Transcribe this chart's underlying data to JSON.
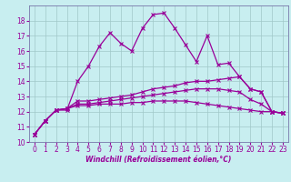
{
  "title": "",
  "xlabel": "Windchill (Refroidissement éolien,°C)",
  "background_color": "#c8eef0",
  "grid_color": "#a0c8c8",
  "line_color": "#990099",
  "spine_color": "#7777aa",
  "xlim": [
    -0.5,
    23.5
  ],
  "ylim": [
    10,
    19
  ],
  "yticks": [
    10,
    11,
    12,
    13,
    14,
    15,
    16,
    17,
    18
  ],
  "xticks": [
    0,
    1,
    2,
    3,
    4,
    5,
    6,
    7,
    8,
    9,
    10,
    11,
    12,
    13,
    14,
    15,
    16,
    17,
    18,
    19,
    20,
    21,
    22,
    23
  ],
  "series": [
    [
      10.5,
      11.4,
      12.1,
      12.1,
      14.0,
      15.0,
      16.3,
      17.2,
      16.5,
      16.0,
      17.5,
      18.4,
      18.5,
      17.5,
      16.4,
      15.3,
      17.0,
      15.1,
      15.2,
      14.3,
      13.5,
      13.3,
      12.0,
      11.9
    ],
    [
      10.5,
      11.4,
      12.1,
      12.2,
      12.7,
      12.7,
      12.8,
      12.9,
      13.0,
      13.1,
      13.3,
      13.5,
      13.6,
      13.7,
      13.9,
      14.0,
      14.0,
      14.1,
      14.2,
      14.3,
      13.5,
      13.3,
      12.0,
      11.9
    ],
    [
      10.5,
      11.4,
      12.1,
      12.2,
      12.5,
      12.5,
      12.6,
      12.7,
      12.8,
      12.9,
      13.0,
      13.1,
      13.2,
      13.3,
      13.4,
      13.5,
      13.5,
      13.5,
      13.4,
      13.3,
      12.8,
      12.5,
      12.0,
      11.9
    ],
    [
      10.5,
      11.4,
      12.1,
      12.2,
      12.4,
      12.4,
      12.5,
      12.5,
      12.5,
      12.6,
      12.6,
      12.7,
      12.7,
      12.7,
      12.7,
      12.6,
      12.5,
      12.4,
      12.3,
      12.2,
      12.1,
      12.0,
      12.0,
      11.9
    ]
  ],
  "tick_fontsize": 5.5,
  "xlabel_fontsize": 5.5,
  "marker_size": 3.0,
  "linewidth": 0.9
}
